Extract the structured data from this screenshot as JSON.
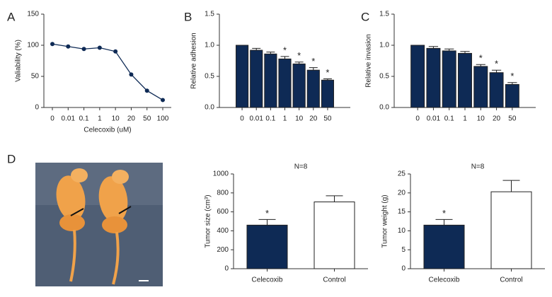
{
  "chart_data": [
    {
      "type": "line",
      "label": "A",
      "x_label": "Celecoxib (uM)",
      "y_label": "Valiability (%)",
      "categories": [
        "0",
        "0.01",
        "0.1",
        "1",
        "10",
        "20",
        "50",
        "100"
      ],
      "values": [
        102,
        98,
        94,
        96,
        90,
        53,
        27,
        12
      ],
      "color": "#0e2a55",
      "ylim": [
        0,
        150
      ],
      "yticks": [
        0,
        50,
        100,
        150
      ]
    },
    {
      "type": "bar",
      "label": "B",
      "y_label": "Relative adhesion",
      "categories": [
        "0",
        "0.01",
        "0.1",
        "1",
        "10",
        "20",
        "50"
      ],
      "values": [
        1.0,
        0.92,
        0.86,
        0.78,
        0.7,
        0.6,
        0.44
      ],
      "errors": [
        0,
        0.03,
        0.03,
        0.04,
        0.03,
        0.04,
        0.02
      ],
      "color": "#0e2a55",
      "ylim": [
        0,
        1.5
      ],
      "yticks": [
        {
          "value": 0,
          "label": "0.0"
        },
        0.5,
        {
          "value": 1,
          "label": "1.0"
        },
        1.5
      ],
      "annotations": [
        {
          "text": "*",
          "category": "1"
        },
        {
          "text": "*",
          "category": "10"
        },
        {
          "text": "*",
          "category": "20"
        },
        {
          "text": "*",
          "category": "50"
        }
      ]
    },
    {
      "type": "bar",
      "label": "C",
      "y_label": "Relative invasion",
      "categories": [
        "0",
        "0.01",
        "0.1",
        "1",
        "10",
        "20",
        "50"
      ],
      "values": [
        1.0,
        0.95,
        0.91,
        0.87,
        0.66,
        0.56,
        0.37
      ],
      "errors": [
        0,
        0.03,
        0.03,
        0.03,
        0.03,
        0.04,
        0.03
      ],
      "color": "#0e2a55",
      "ylim": [
        0,
        1.5
      ],
      "yticks": [
        {
          "value": 0,
          "label": "0.0"
        },
        0.5,
        {
          "value": 1,
          "label": "1.0"
        },
        1.5
      ],
      "annotations": [
        {
          "text": "*",
          "category": "10"
        },
        {
          "text": "*",
          "category": "20"
        },
        {
          "text": "*",
          "category": "50"
        }
      ]
    },
    {
      "type": "bar",
      "title": "N=8",
      "y_label": "Tumor size (cm³)",
      "categories": [
        "Celecoxib",
        "Control"
      ],
      "values": [
        460,
        705
      ],
      "errors": [
        60,
        65
      ],
      "colors": [
        "#0e2a55",
        "#ffffff"
      ],
      "ylim": [
        0,
        1000
      ],
      "yticks": [
        0,
        200,
        400,
        600,
        800,
        1000
      ],
      "annotations": [
        {
          "text": "*",
          "category": "Celecoxib"
        }
      ]
    },
    {
      "type": "bar",
      "title": "N=8",
      "y_label": "Tumor weight (g)",
      "categories": [
        "Celecoxib",
        "Control"
      ],
      "values": [
        11.5,
        20.3
      ],
      "errors": [
        1.5,
        3.0
      ],
      "colors": [
        "#0e2a55",
        "#ffffff"
      ],
      "ylim": [
        0,
        25
      ],
      "yticks": [
        0,
        5,
        10,
        15,
        20,
        25
      ],
      "annotations": [
        {
          "text": "*",
          "category": "Celecoxib"
        }
      ]
    }
  ],
  "photo_panel": {
    "label": "D"
  }
}
